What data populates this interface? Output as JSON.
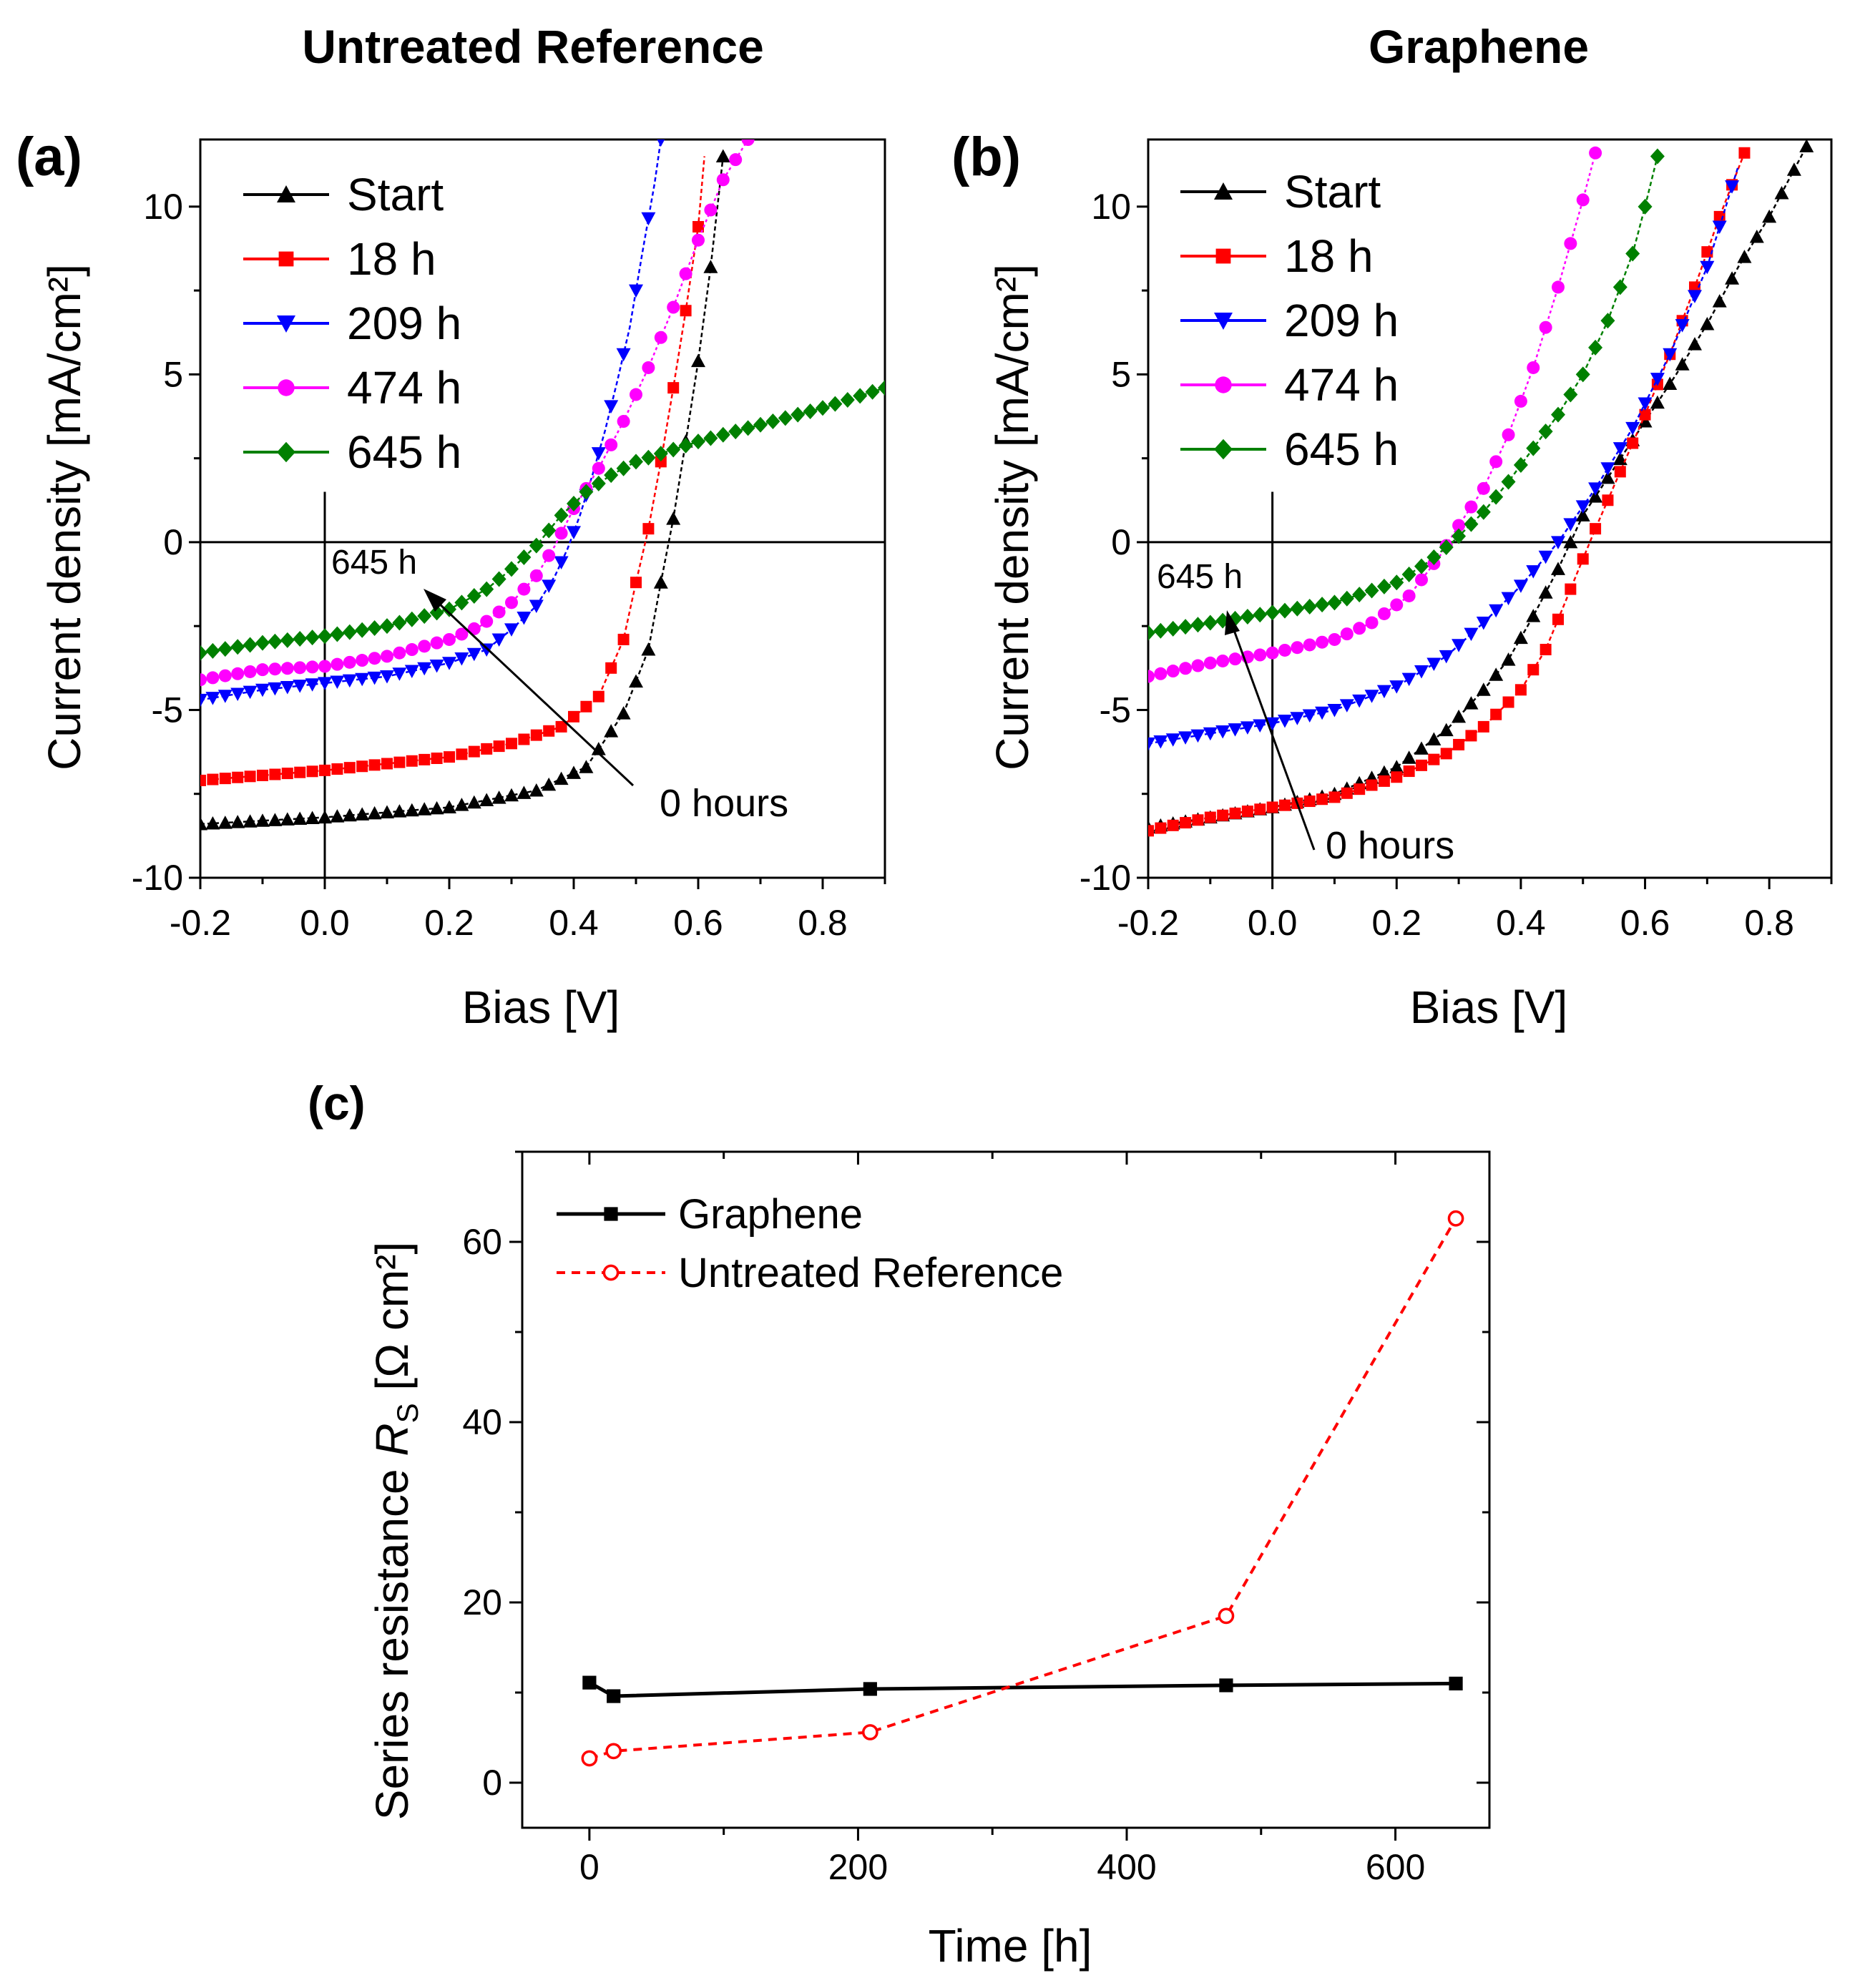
{
  "chart_data": [
    {
      "panel_id": "a",
      "type": "line",
      "panel_label": "(a)",
      "title": "Untreated Reference",
      "xlabel": "Bias [V]",
      "ylabel": "Current density [mA/cm²]",
      "xlim": [
        -0.2,
        0.9
      ],
      "ylim": [
        -10,
        12
      ],
      "xticks": [
        -0.2,
        0.0,
        0.2,
        0.4,
        0.6,
        0.8
      ],
      "yticks": [
        -10,
        -5,
        0,
        5,
        10
      ],
      "xtick_labels": [
        "-0.2",
        "0.0",
        "0.2",
        "0.4",
        "0.6",
        "0.8"
      ],
      "ytick_labels": [
        "-10",
        "-5",
        "0",
        "5",
        "10"
      ],
      "annotation_start": "645 h",
      "annotation_end": "0 hours",
      "series": [
        {
          "name": "Start",
          "color": "#000000",
          "marker": "triangle-up",
          "dash": "6,4",
          "anchors": [
            [
              -0.2,
              -8.4
            ],
            [
              0,
              -8.2
            ],
            [
              0.2,
              -7.9
            ],
            [
              0.34,
              -7.4
            ],
            [
              0.42,
              -6.7
            ],
            [
              0.48,
              -5.1
            ],
            [
              0.52,
              -3.2
            ],
            [
              0.54,
              -1.2
            ],
            [
              0.56,
              0.7
            ],
            [
              0.58,
              3.0
            ],
            [
              0.6,
              5.4
            ],
            [
              0.62,
              8.2
            ],
            [
              0.64,
              11.5
            ]
          ]
        },
        {
          "name": "18 h",
          "color": "#ff0000",
          "marker": "square",
          "dash": "6,4",
          "anchors": [
            [
              -0.2,
              -7.1
            ],
            [
              0,
              -6.8
            ],
            [
              0.2,
              -6.4
            ],
            [
              0.3,
              -6.0
            ],
            [
              0.38,
              -5.5
            ],
            [
              0.44,
              -4.6
            ],
            [
              0.48,
              -2.9
            ],
            [
              0.5,
              -1.2
            ],
            [
              0.52,
              0.4
            ],
            [
              0.54,
              2.4
            ],
            [
              0.56,
              4.6
            ],
            [
              0.58,
              6.9
            ],
            [
              0.6,
              9.4
            ],
            [
              0.61,
              11.5
            ]
          ]
        },
        {
          "name": "209 h",
          "color": "#0000ff",
          "marker": "triangle-down",
          "dash": "6,4",
          "anchors": [
            [
              -0.2,
              -4.7
            ],
            [
              -0.1,
              -4.4
            ],
            [
              0,
              -4.2
            ],
            [
              0.1,
              -4.0
            ],
            [
              0.2,
              -3.6
            ],
            [
              0.26,
              -3.2
            ],
            [
              0.3,
              -2.6
            ],
            [
              0.34,
              -1.9
            ],
            [
              0.37,
              -1.0
            ],
            [
              0.39,
              -0.2
            ],
            [
              0.41,
              0.8
            ],
            [
              0.43,
              2.0
            ],
            [
              0.45,
              3.3
            ],
            [
              0.47,
              4.8
            ],
            [
              0.49,
              6.4
            ],
            [
              0.51,
              8.6
            ],
            [
              0.53,
              10.7
            ],
            [
              0.54,
              12.0
            ]
          ]
        },
        {
          "name": "474 h",
          "color": "#ff00ff",
          "marker": "circle",
          "dash": "4,4",
          "anchors": [
            [
              -0.2,
              -4.1
            ],
            [
              -0.1,
              -3.8
            ],
            [
              0,
              -3.7
            ],
            [
              0.1,
              -3.4
            ],
            [
              0.2,
              -2.9
            ],
            [
              0.25,
              -2.5
            ],
            [
              0.3,
              -1.8
            ],
            [
              0.34,
              -1.0
            ],
            [
              0.37,
              -0.1
            ],
            [
              0.4,
              1.0
            ],
            [
              0.44,
              2.2
            ],
            [
              0.48,
              3.6
            ],
            [
              0.52,
              5.2
            ],
            [
              0.56,
              7.0
            ],
            [
              0.6,
              9.0
            ],
            [
              0.64,
              10.8
            ],
            [
              0.68,
              12.0
            ]
          ]
        },
        {
          "name": "645 h",
          "color": "#008000",
          "marker": "diamond",
          "dash": "6,4",
          "anchors": [
            [
              -0.2,
              -3.3
            ],
            [
              -0.1,
              -3.0
            ],
            [
              0,
              -2.8
            ],
            [
              0.1,
              -2.5
            ],
            [
              0.2,
              -2.0
            ],
            [
              0.26,
              -1.4
            ],
            [
              0.3,
              -0.8
            ],
            [
              0.34,
              -0.1
            ],
            [
              0.38,
              0.8
            ],
            [
              0.42,
              1.5
            ],
            [
              0.46,
              2.0
            ],
            [
              0.5,
              2.4
            ],
            [
              0.6,
              3.0
            ],
            [
              0.7,
              3.5
            ],
            [
              0.8,
              4.0
            ],
            [
              0.9,
              4.6
            ]
          ]
        }
      ]
    },
    {
      "panel_id": "b",
      "type": "line",
      "panel_label": "(b)",
      "title": "Graphene",
      "xlabel": "Bias [V]",
      "ylabel": "Current density [mA/cm²]",
      "xlim": [
        -0.2,
        0.9
      ],
      "ylim": [
        -10,
        12
      ],
      "xticks": [
        -0.2,
        0.0,
        0.2,
        0.4,
        0.6,
        0.8
      ],
      "yticks": [
        -10,
        -5,
        0,
        5,
        10
      ],
      "xtick_labels": [
        "-0.2",
        "0.0",
        "0.2",
        "0.4",
        "0.6",
        "0.8"
      ],
      "ytick_labels": [
        "-10",
        "-5",
        "0",
        "5",
        "10"
      ],
      "annotation_start": "645 h",
      "annotation_end": "0 hours",
      "series": [
        {
          "name": "Start",
          "color": "#000000",
          "marker": "triangle-up",
          "dash": "6,4",
          "anchors": [
            [
              -0.2,
              -8.5
            ],
            [
              -0.1,
              -8.2
            ],
            [
              0,
              -7.9
            ],
            [
              0.1,
              -7.5
            ],
            [
              0.2,
              -6.7
            ],
            [
              0.28,
              -5.6
            ],
            [
              0.34,
              -4.4
            ],
            [
              0.38,
              -3.5
            ],
            [
              0.42,
              -2.2
            ],
            [
              0.46,
              -0.8
            ],
            [
              0.5,
              0.8
            ],
            [
              0.55,
              2.2
            ],
            [
              0.6,
              3.6
            ],
            [
              0.65,
              5.0
            ],
            [
              0.7,
              6.5
            ],
            [
              0.75,
              8.2
            ],
            [
              0.8,
              9.7
            ],
            [
              0.86,
              11.8
            ]
          ]
        },
        {
          "name": "18 h",
          "color": "#ff0000",
          "marker": "square",
          "dash": "6,4",
          "anchors": [
            [
              -0.2,
              -8.6
            ],
            [
              -0.1,
              -8.2
            ],
            [
              0,
              -7.9
            ],
            [
              0.1,
              -7.6
            ],
            [
              0.2,
              -7.0
            ],
            [
              0.28,
              -6.3
            ],
            [
              0.34,
              -5.5
            ],
            [
              0.4,
              -4.4
            ],
            [
              0.44,
              -3.2
            ],
            [
              0.48,
              -1.4
            ],
            [
              0.52,
              0.4
            ],
            [
              0.56,
              2.1
            ],
            [
              0.6,
              3.8
            ],
            [
              0.64,
              5.6
            ],
            [
              0.68,
              7.6
            ],
            [
              0.72,
              9.7
            ],
            [
              0.76,
              11.6
            ]
          ]
        },
        {
          "name": "209 h",
          "color": "#0000ff",
          "marker": "triangle-down",
          "dash": "6,4",
          "anchors": [
            [
              -0.2,
              -6.0
            ],
            [
              -0.1,
              -5.7
            ],
            [
              0,
              -5.4
            ],
            [
              0.1,
              -5.0
            ],
            [
              0.2,
              -4.3
            ],
            [
              0.28,
              -3.4
            ],
            [
              0.34,
              -2.4
            ],
            [
              0.4,
              -1.3
            ],
            [
              0.46,
              0.0
            ],
            [
              0.52,
              1.6
            ],
            [
              0.58,
              3.4
            ],
            [
              0.64,
              5.6
            ],
            [
              0.7,
              8.2
            ],
            [
              0.75,
              11.2
            ]
          ]
        },
        {
          "name": "474 h",
          "color": "#ff00ff",
          "marker": "circle",
          "dash": "4,4",
          "anchors": [
            [
              -0.2,
              -4.0
            ],
            [
              -0.1,
              -3.6
            ],
            [
              0,
              -3.3
            ],
            [
              0.1,
              -2.9
            ],
            [
              0.16,
              -2.4
            ],
            [
              0.22,
              -1.6
            ],
            [
              0.27,
              -0.4
            ],
            [
              0.3,
              0.5
            ],
            [
              0.34,
              1.6
            ],
            [
              0.38,
              3.2
            ],
            [
              0.42,
              5.2
            ],
            [
              0.46,
              7.6
            ],
            [
              0.5,
              10.2
            ],
            [
              0.52,
              11.6
            ]
          ]
        },
        {
          "name": "645 h",
          "color": "#008000",
          "marker": "diamond",
          "dash": "6,4",
          "anchors": [
            [
              -0.2,
              -2.7
            ],
            [
              -0.1,
              -2.4
            ],
            [
              0,
              -2.1
            ],
            [
              0.1,
              -1.8
            ],
            [
              0.2,
              -1.2
            ],
            [
              0.25,
              -0.6
            ],
            [
              0.29,
              0.0
            ],
            [
              0.34,
              0.9
            ],
            [
              0.38,
              1.8
            ],
            [
              0.42,
              2.8
            ],
            [
              0.46,
              3.8
            ],
            [
              0.5,
              5.0
            ],
            [
              0.54,
              6.6
            ],
            [
              0.58,
              8.6
            ],
            [
              0.6,
              10.0
            ],
            [
              0.62,
              11.5
            ]
          ]
        }
      ]
    },
    {
      "panel_id": "c",
      "type": "line",
      "panel_label": "(c)",
      "xlabel": "Time [h]",
      "ylabel_main": "Series resistance ",
      "ylabel_symbol": "R",
      "ylabel_subscript": "S",
      "ylabel_units": " [Ω cm²]",
      "xlim": [
        -50,
        670
      ],
      "ylim": [
        -5,
        70
      ],
      "xticks": [
        0,
        200,
        400,
        600
      ],
      "yticks": [
        0,
        20,
        40,
        60
      ],
      "xtick_labels": [
        "0",
        "200",
        "400",
        "600"
      ],
      "ytick_labels": [
        "0",
        "20",
        "40",
        "60"
      ],
      "series": [
        {
          "name": "Graphene",
          "color": "#000000",
          "marker": "square",
          "dash": "",
          "x": [
            0,
            18,
            209,
            474,
            645
          ],
          "y": [
            11.1,
            9.6,
            10.4,
            10.8,
            11.0
          ]
        },
        {
          "name": "Untreated Reference",
          "color": "#ff0000",
          "marker": "circle-open",
          "dash": "12,9",
          "x": [
            0,
            18,
            209,
            474,
            645
          ],
          "y": [
            2.7,
            3.5,
            5.6,
            18.5,
            62.6
          ]
        }
      ]
    }
  ]
}
